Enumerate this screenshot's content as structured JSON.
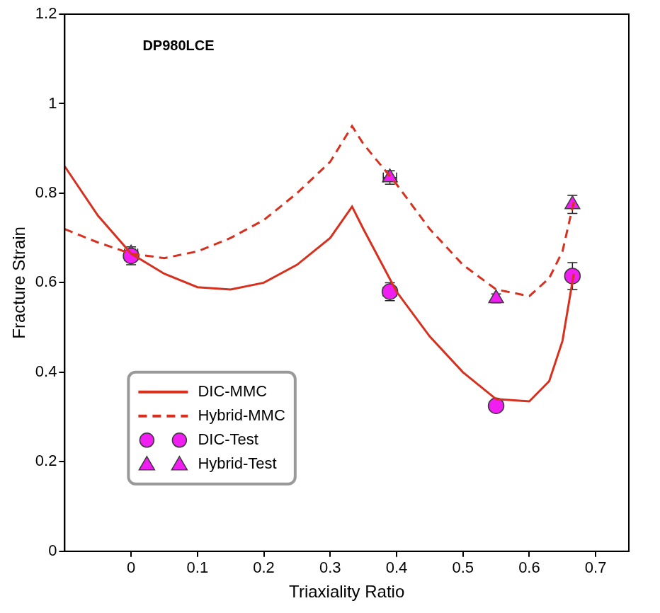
{
  "chart_data": {
    "type": "scatter",
    "annotation": "DP980LCE",
    "x_label": "Triaxiality Ratio",
    "y_label": "Fracture Strain",
    "xlim": [
      -0.1,
      0.75
    ],
    "xticks": [
      0,
      0.1,
      0.2,
      0.3,
      0.4,
      0.5,
      0.6,
      0.7
    ],
    "ylim": [
      0,
      1.2
    ],
    "yticks": [
      0,
      0.2,
      0.4,
      0.6,
      0.8,
      1,
      1.2
    ],
    "grid": false,
    "legend": "lower left",
    "series": [
      {
        "name": "DIC-MMC",
        "type": "line",
        "color": "#d7301f",
        "line_style": "solid",
        "x": [
          -0.1,
          -0.05,
          0,
          0.05,
          0.1,
          0.15,
          0.2,
          0.25,
          0.3,
          0.333,
          0.35,
          0.4,
          0.45,
          0.5,
          0.55,
          0.6,
          0.63,
          0.65,
          0.667
        ],
        "values": [
          0.86,
          0.75,
          0.665,
          0.62,
          0.59,
          0.585,
          0.6,
          0.64,
          0.7,
          0.77,
          0.72,
          0.58,
          0.48,
          0.4,
          0.34,
          0.335,
          0.38,
          0.47,
          0.62
        ]
      },
      {
        "name": "Hybrid-MMC",
        "type": "line",
        "color": "#d7301f",
        "line_style": "dashed",
        "x": [
          -0.1,
          -0.05,
          0,
          0.05,
          0.1,
          0.15,
          0.2,
          0.25,
          0.3,
          0.333,
          0.35,
          0.4,
          0.45,
          0.5,
          0.55,
          0.6,
          0.63,
          0.65,
          0.667
        ],
        "values": [
          0.72,
          0.69,
          0.665,
          0.655,
          0.67,
          0.7,
          0.74,
          0.8,
          0.87,
          0.95,
          0.91,
          0.82,
          0.72,
          0.64,
          0.585,
          0.57,
          0.61,
          0.67,
          0.78
        ]
      },
      {
        "name": "DIC-Test",
        "type": "scatter",
        "color": "#f01ef0",
        "marker": "circle",
        "x": [
          0,
          0.39,
          0.55,
          0.665
        ],
        "values": [
          0.66,
          0.58,
          0.325,
          0.615
        ],
        "x_error": [
          0.01,
          0.01,
          0,
          0
        ],
        "y_error": [
          0.02,
          0.02,
          0.01,
          0.03
        ]
      },
      {
        "name": "Hybrid-Test",
        "type": "scatter",
        "color": "#f01ef0",
        "marker": "triangle",
        "x": [
          0,
          0.39,
          0.55,
          0.665
        ],
        "values": [
          0.665,
          0.835,
          0.565,
          0.775
        ],
        "x_error": [
          0.01,
          0.01,
          0,
          0
        ],
        "y_error": [
          0.01,
          0.015,
          0.01,
          0.02
        ]
      }
    ]
  }
}
